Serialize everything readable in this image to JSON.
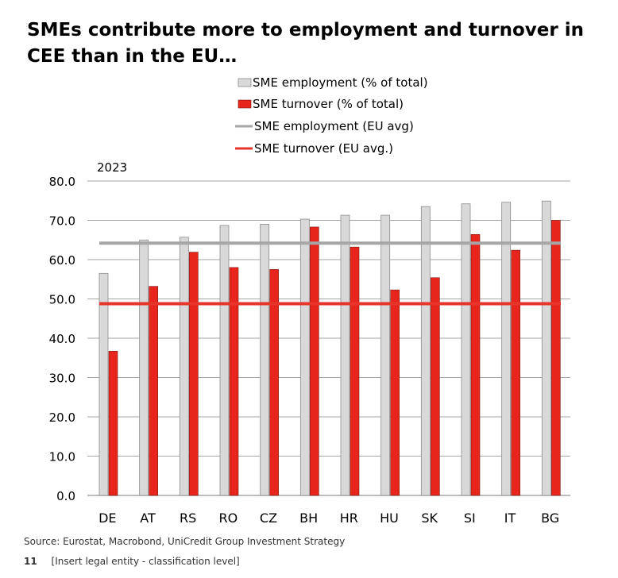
{
  "title_line1": "SMEs contribute more to employment and turnover in",
  "title_line2": "CEE than in the EU…",
  "footer": {
    "source": "Source: Eurostat,  Macrobond, UniCredit Group Investment Strategy",
    "page_number": "11",
    "legal": "[Insert legal entity - classification level]"
  },
  "colors": {
    "employment_bar": "#d9d9d9",
    "turnover_bar": "#e8251c",
    "employment_avg": "#a6a6a6",
    "turnover_avg": "#e8352c"
  },
  "chart_data": {
    "type": "bar",
    "annotation": "2023",
    "categories": [
      "DE",
      "AT",
      "RS",
      "RO",
      "CZ",
      "BH",
      "HR",
      "HU",
      "SK",
      "SI",
      "IT",
      "BG"
    ],
    "series": [
      {
        "name": "SME employment (% of total)",
        "values": [
          56.5,
          65.0,
          65.7,
          68.7,
          69.0,
          70.3,
          71.3,
          71.3,
          73.5,
          74.2,
          74.6,
          74.9
        ]
      },
      {
        "name": "SME turnover (% of total)",
        "values": [
          36.7,
          53.2,
          61.9,
          58.0,
          57.5,
          68.3,
          63.2,
          52.3,
          55.4,
          66.4,
          62.4,
          70.0
        ]
      }
    ],
    "reference_lines": [
      {
        "name": "SME employment (EU avg)",
        "value": 64.2
      },
      {
        "name": "SME turnover (EU avg.)",
        "value": 48.8
      }
    ],
    "ylim": [
      0,
      80
    ],
    "yticks": [
      "0.0",
      "10.0",
      "20.0",
      "30.0",
      "40.0",
      "50.0",
      "60.0",
      "70.0",
      "80.0"
    ],
    "grid": true,
    "legend_position": "top-right"
  }
}
